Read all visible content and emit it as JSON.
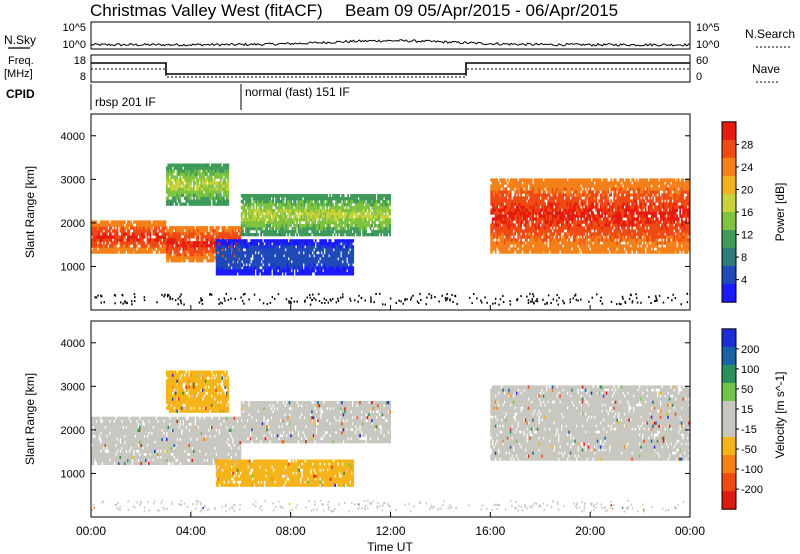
{
  "header": {
    "title_left": "Christmas Valley West (fitACF)",
    "title_right": "Beam 09   05/Apr/2015 - 06/Apr/2015"
  },
  "nsky_panel": {
    "left_label": "N.Sky",
    "left_ticks": [
      "10^5",
      "10^0"
    ],
    "right_ticks": [
      "10^5",
      "10^0"
    ],
    "right_label": "N.Search"
  },
  "freq_panel": {
    "left_label_1": "Freq.",
    "left_label_2": "[MHz]",
    "left_ticks": [
      "18",
      "8"
    ],
    "right_ticks": [
      "60",
      "0"
    ],
    "right_label": "Nave"
  },
  "cpid_panel": {
    "label": "CPID",
    "segments": [
      "rbsp 201 IF",
      "normal (fast) 151 IF"
    ]
  },
  "colors": {
    "power_scale": [
      "#1a1aff",
      "#1f4ab8",
      "#2f7a7a",
      "#3f9b5a",
      "#7fc341",
      "#c8d23a",
      "#f2b21e",
      "#f4801a",
      "#ef4a14",
      "#e51b0e"
    ],
    "velocity_scale": [
      "#1c2cd6",
      "#1a62a6",
      "#2b8f5d",
      "#6fc54a",
      "#c8c8c0",
      "#c8c8c0",
      "#f4b41a",
      "#f48216",
      "#ef4a14",
      "#dd1a10"
    ],
    "panel_frame": "#000000"
  },
  "chart_data": [
    {
      "type": "heatmap",
      "panel": "Power",
      "ylabel": "Slant Range [km]",
      "yticks": [
        "4000",
        "3000",
        "2000",
        "1000"
      ],
      "ylim": [
        0,
        4500
      ],
      "xlim": [
        "00:00",
        "24:00"
      ],
      "colorbar": {
        "label": "Power [dB]",
        "ticks": [
          "28",
          "24",
          "20",
          "16",
          "12",
          "8",
          "4"
        ],
        "range": [
          0,
          32
        ]
      },
      "echo_bands": [
        {
          "t_start": 0.0,
          "t_end": 3.0,
          "range_low": 1300,
          "range_high": 2000,
          "level": "high"
        },
        {
          "t_start": 3.0,
          "t_end": 6.0,
          "range_low": 1100,
          "range_high": 1900,
          "level": "high"
        },
        {
          "t_start": 3.0,
          "t_end": 5.5,
          "range_low": 2400,
          "range_high": 3300,
          "level": "medium"
        },
        {
          "t_start": 6.0,
          "t_end": 12.0,
          "range_low": 1700,
          "range_high": 2600,
          "level": "medium"
        },
        {
          "t_start": 5.0,
          "t_end": 10.5,
          "range_low": 800,
          "range_high": 1600,
          "level": "low"
        },
        {
          "t_start": 16.0,
          "t_end": 24.0,
          "range_low": 1300,
          "range_high": 3000,
          "level": "high"
        }
      ]
    },
    {
      "type": "heatmap",
      "panel": "Velocity",
      "ylabel": "Slant Range [km]",
      "yticks": [
        "4000",
        "3000",
        "2000",
        "1000"
      ],
      "ylim": [
        0,
        4500
      ],
      "xlim": [
        "00:00",
        "24:00"
      ],
      "xlabel": "Time UT",
      "xticks": [
        "00:00",
        "04:00",
        "08:00",
        "12:00",
        "16:00",
        "20:00",
        "00:00"
      ],
      "colorbar": {
        "label": "Velocity [m s^-1]",
        "ticks": [
          "200",
          "100",
          "50",
          "15",
          "-15",
          "-50",
          "-100",
          "-200"
        ],
        "range": [
          -250,
          250
        ]
      },
      "echo_bands": [
        {
          "t_start": 0.0,
          "t_end": 6.0,
          "range_low": 1200,
          "range_high": 2300,
          "velocity": 0
        },
        {
          "t_start": 3.0,
          "t_end": 5.5,
          "range_low": 2400,
          "range_high": 3300,
          "velocity": -50
        },
        {
          "t_start": 5.0,
          "t_end": 10.5,
          "range_low": 700,
          "range_high": 1300,
          "velocity": -50
        },
        {
          "t_start": 6.0,
          "t_end": 12.0,
          "range_low": 1700,
          "range_high": 2600,
          "velocity": 0
        },
        {
          "t_start": 16.0,
          "t_end": 24.0,
          "range_low": 1300,
          "range_high": 3000,
          "velocity": 0
        }
      ]
    }
  ]
}
